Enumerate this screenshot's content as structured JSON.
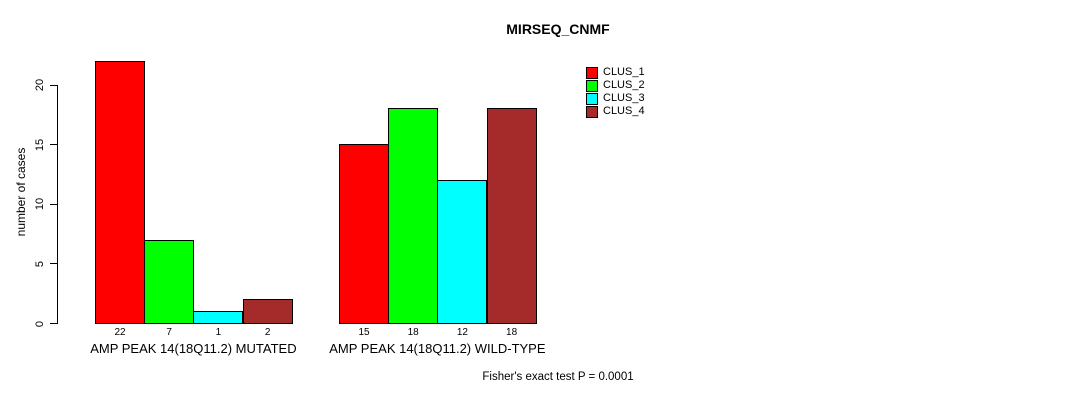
{
  "chart_data": {
    "type": "bar",
    "title": "MIRSEQ_CNMF",
    "xlabel": "",
    "ylabel": "number of cases",
    "ylim": [
      0,
      20
    ],
    "yticks": [
      "0",
      "5",
      "10",
      "15",
      "20"
    ],
    "grid": false,
    "legend_position": "top-right",
    "categories": [
      "AMP PEAK 14(18Q11.2) MUTATED",
      "AMP PEAK 14(18Q11.2) WILD-TYPE"
    ],
    "series": [
      {
        "name": "CLUS_1",
        "color": "#ff0000",
        "values": [
          22,
          15
        ]
      },
      {
        "name": "CLUS_2",
        "color": "#00ff00",
        "values": [
          7,
          18
        ]
      },
      {
        "name": "CLUS_3",
        "color": "#00ffff",
        "values": [
          1,
          12
        ]
      },
      {
        "name": "CLUS_4",
        "color": "#a52a2a",
        "values": [
          2,
          18
        ]
      }
    ],
    "bar_value_labels": [
      [
        "22",
        "7",
        "1",
        "2"
      ],
      [
        "15",
        "18",
        "12",
        "18"
      ]
    ],
    "footnote": "Fisher's exact test P = 0.0001",
    "colors": {
      "axis": "#000000",
      "background": "#ffffff"
    }
  }
}
